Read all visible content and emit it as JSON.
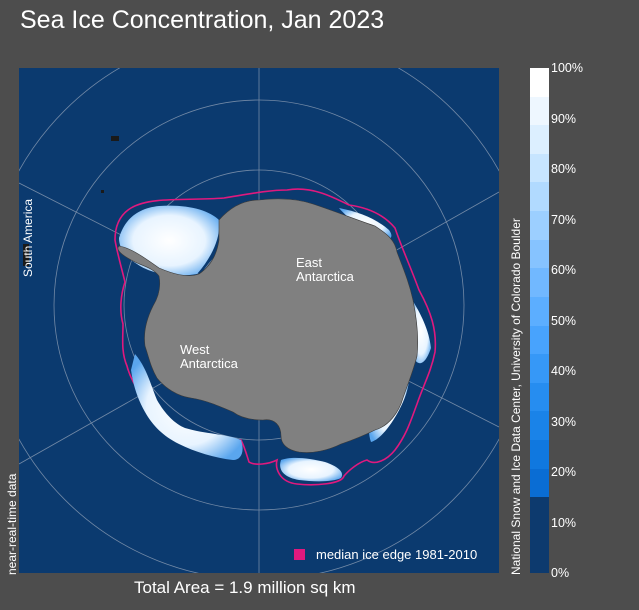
{
  "title": "Sea Ice Concentration, Jan 2023",
  "map": {
    "legend_label": "median ice edge 1981-2010",
    "regions": {
      "east_line1": "East",
      "east_line2": "Antarctica",
      "west_line1": "West",
      "west_line2": "Antarctica",
      "south_america": "South America"
    },
    "status_label": "near-real-time data",
    "total_area": "Total Area = 1.9 million sq km",
    "colors": {
      "ocean": "#0b3a6f",
      "land": "#808080",
      "median_edge": "#e0197e",
      "grid": "#8c9db4"
    }
  },
  "colorbar": {
    "tick_labels": [
      "100%",
      "90%",
      "80%",
      "70%",
      "60%",
      "50%",
      "40%",
      "30%",
      "20%",
      "10%",
      "0%"
    ],
    "colors": [
      "#ffffff",
      "#eef7ff",
      "#dcefff",
      "#c7e5ff",
      "#b1daff",
      "#9ccfff",
      "#86c3ff",
      "#71b8ff",
      "#5caeff",
      "#48a3fd",
      "#3698f7",
      "#268df0",
      "#1a83e8",
      "#1078df",
      "#0a6dd4",
      "#0d3a6e"
    ],
    "credit": "National Snow and Ice Data Center, University of Colorado Boulder"
  }
}
